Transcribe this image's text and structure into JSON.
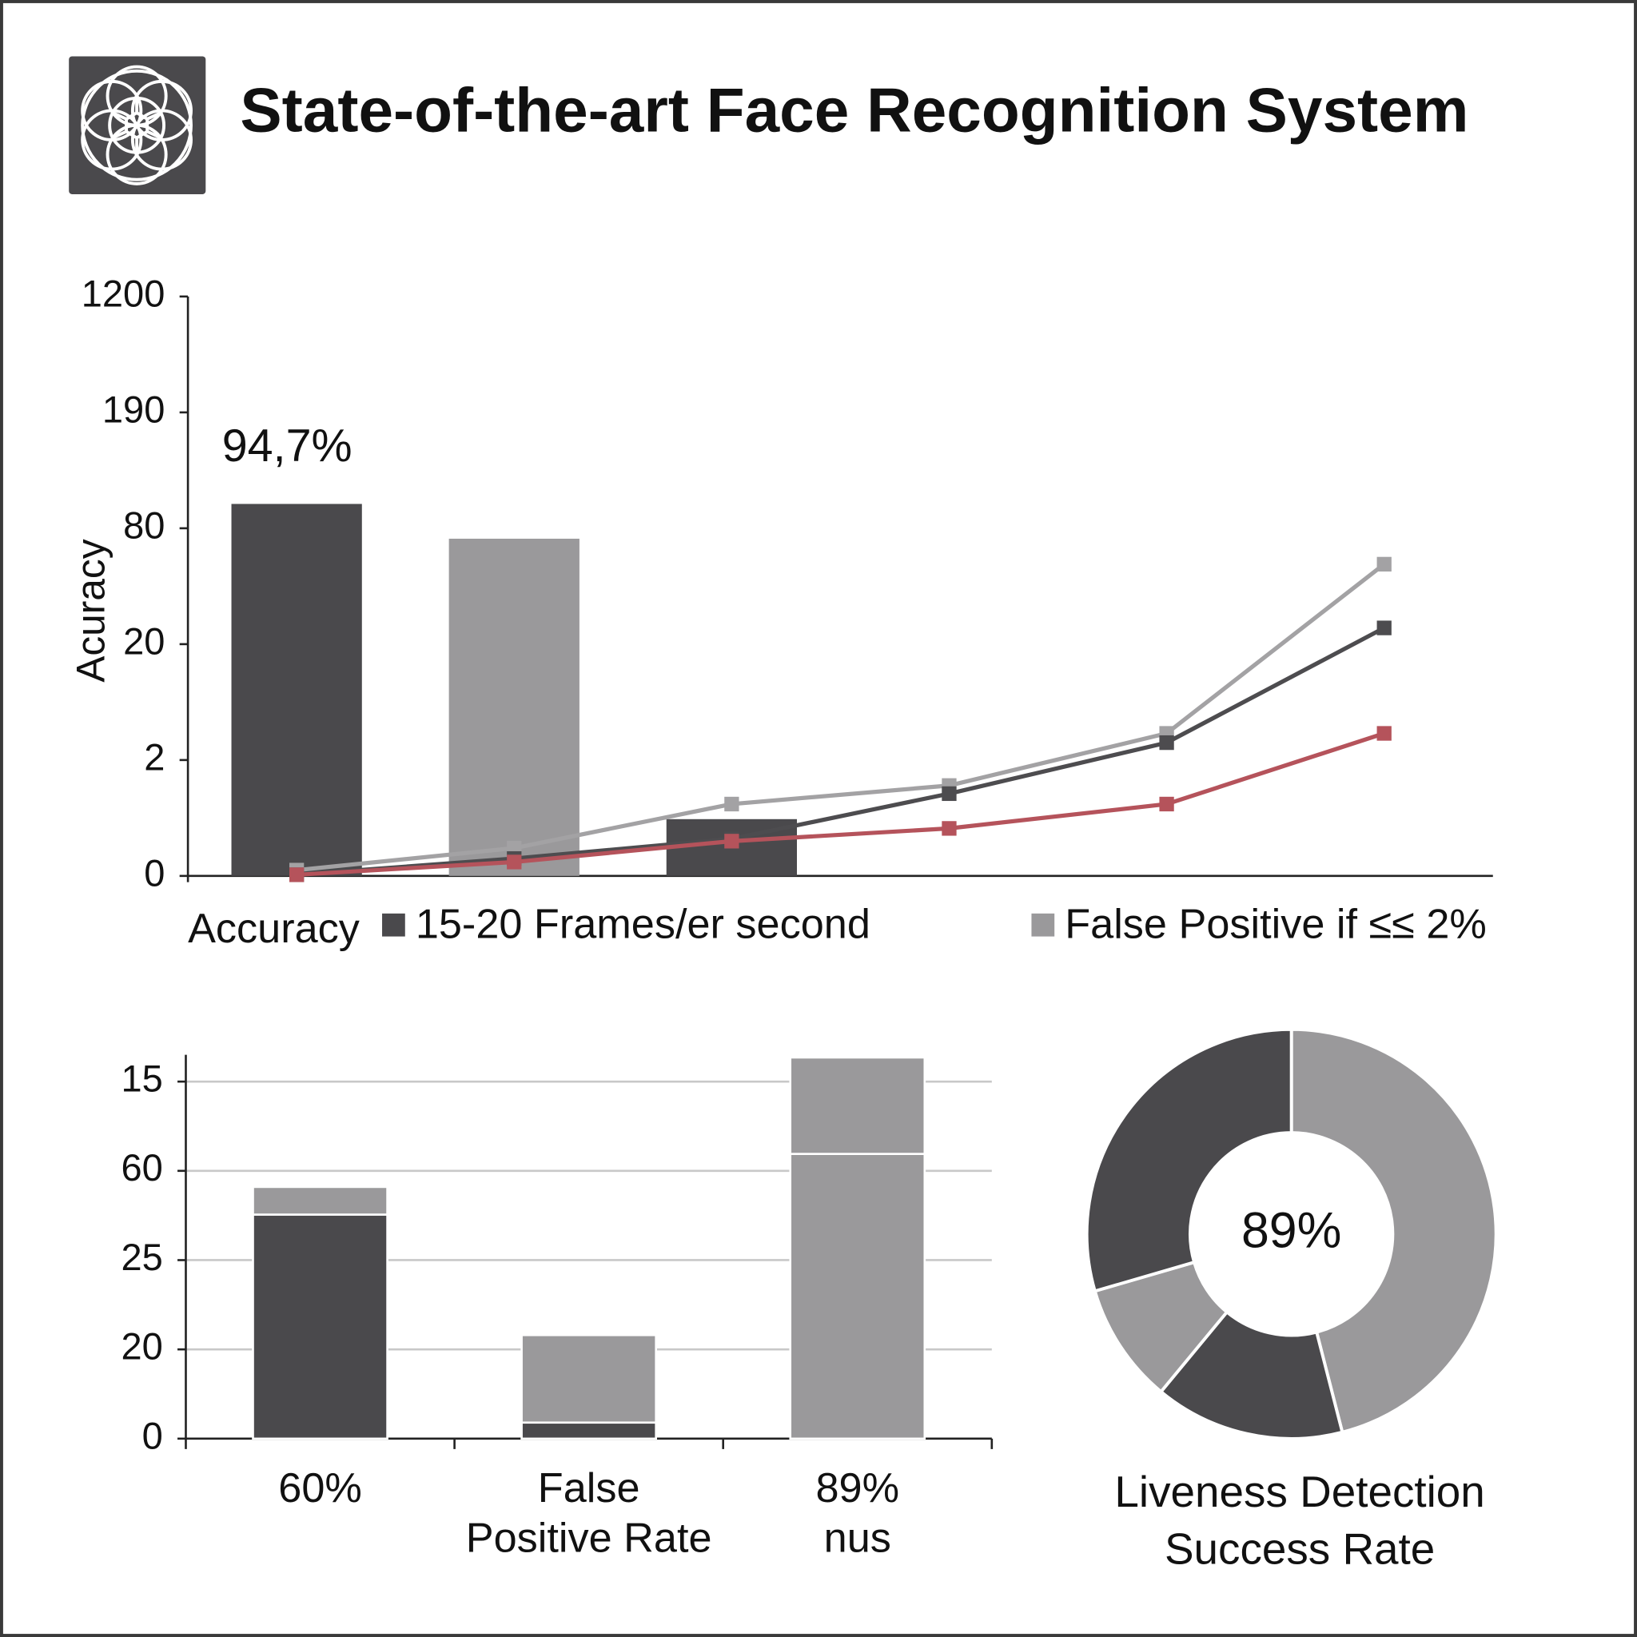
{
  "header": {
    "title": "State-of-the-art Face Recognition System"
  },
  "chart_data": [
    {
      "type": "combo",
      "y_label": "Acuracy",
      "annotation": "94,7%",
      "legend_title": "Accuracy",
      "categories": [
        null,
        null,
        null,
        null,
        null,
        null
      ],
      "ylim": [
        0,
        5
      ],
      "yticks": [
        0,
        {
          "value": 1,
          "label": "2"
        },
        {
          "value": 2,
          "label": "20"
        },
        {
          "value": 3,
          "label": "80"
        },
        {
          "value": 4,
          "label": "190"
        },
        {
          "value": 5,
          "label": "1200"
        }
      ],
      "series": [
        {
          "name": "15-20 Frames/er second",
          "type": "bar",
          "color": "#4a494c",
          "values": [
            3.21,
            null,
            0.49,
            null,
            null,
            null
          ]
        },
        {
          "name": "False Positive if ≤≤ 2%",
          "type": "bar",
          "color": "#9a999b",
          "values": [
            null,
            2.91,
            null,
            null,
            null,
            null
          ]
        },
        {
          "type": "line",
          "color": "#a3a2a4",
          "values": [
            0.05,
            0.24,
            0.62,
            0.78,
            1.23,
            2.69
          ]
        },
        {
          "type": "line",
          "color": "#4d4c4f",
          "values": [
            0.01,
            0.15,
            0.32,
            0.71,
            1.15,
            2.14
          ]
        },
        {
          "type": "line",
          "color": "#b5535b",
          "values": [
            0.01,
            0.12,
            0.3,
            0.41,
            0.62,
            1.23
          ]
        }
      ]
    },
    {
      "type": "stacked-bar",
      "categories": [
        [
          "60%"
        ],
        [
          "False",
          "Positive Rate"
        ],
        [
          "89%",
          "nus"
        ]
      ],
      "ylim": [
        0,
        4.3
      ],
      "yticks": [
        0,
        {
          "value": 1,
          "label": "20"
        },
        {
          "value": 2,
          "label": "25"
        },
        {
          "value": 3,
          "label": "60"
        },
        {
          "value": 4,
          "label": "15"
        }
      ],
      "grid": true,
      "series": [
        {
          "colors": [
            "#4a494c",
            "#4a494c",
            "#9a999b"
          ],
          "values": [
            2.51,
            0.18,
            3.19
          ]
        },
        {
          "colors": [
            "#9a999b",
            "#9a999b",
            "#9a999b"
          ],
          "values": [
            0.31,
            0.98,
            1.08
          ]
        }
      ]
    },
    {
      "type": "donut",
      "center_label": "89%",
      "title": [
        "Liveness Detection",
        "Success Rate"
      ],
      "values": [
        46,
        15,
        9.5,
        29.5
      ],
      "colors": [
        "#9a999b",
        "#4a494c",
        "#9a999b",
        "#4a494c"
      ]
    }
  ]
}
